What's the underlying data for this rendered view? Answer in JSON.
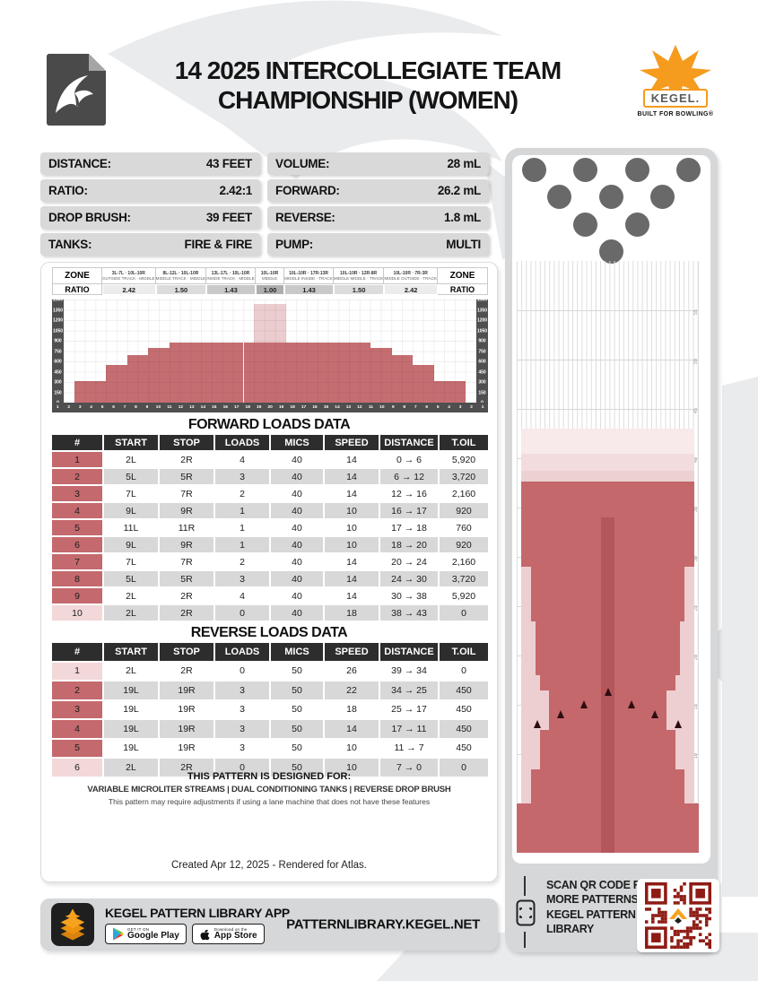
{
  "header": {
    "title_line1": "14 2025 INTERCOLLEGIATE TEAM",
    "title_line2": "CHAMPIONSHIP (WOMEN)",
    "brand": "KEGEL.",
    "brand_tagline": "BUILT FOR BOWLING®"
  },
  "stats": {
    "left": [
      {
        "label": "DISTANCE:",
        "value": "43 FEET"
      },
      {
        "label": "RATIO:",
        "value": "2.42:1"
      },
      {
        "label": "DROP BRUSH:",
        "value": "39 FEET"
      },
      {
        "label": "TANKS:",
        "value": "FIRE & FIRE"
      }
    ],
    "right": [
      {
        "label": "VOLUME:",
        "value": "28 mL"
      },
      {
        "label": "FORWARD:",
        "value": "26.2 mL"
      },
      {
        "label": "REVERSE:",
        "value": "1.8 mL"
      },
      {
        "label": "PUMP:",
        "value": "MULTI"
      }
    ]
  },
  "zone_table": {
    "corner_top": "ZONE",
    "corner_bottom": "RATIO",
    "zones": [
      {
        "line1": "3L-7L · 10L-10R",
        "line2": "OUTSIDE TRACK · MIDDLE",
        "ratio": "2.42",
        "shade": "#ececec"
      },
      {
        "line1": "8L-12L · 10L-10R",
        "line2": "MIDDLE TRACK · MIDDLE",
        "ratio": "1.50",
        "shade": "#dcdcdc"
      },
      {
        "line1": "13L-17L · 10L-10R",
        "line2": "INSIDE TRACK · MIDDLE",
        "ratio": "1.43",
        "shade": "#c9c9c9"
      },
      {
        "line1": "10L-10R",
        "line2": "MIDDLE",
        "ratio": "1.00",
        "shade": "#aeaeae"
      },
      {
        "line1": "10L-10R · 17R-13R",
        "line2": "MIDDLE INSIDE · TRACK",
        "ratio": "1.43",
        "shade": "#c9c9c9"
      },
      {
        "line1": "10L-10R · 12R-8R",
        "line2": "MIDDLE MIDDLE · TRACK",
        "ratio": "1.50",
        "shade": "#dcdcdc"
      },
      {
        "line1": "10L-10R · 7R-3R",
        "line2": "MIDDLE OUTSIDE · TRACK",
        "ratio": "2.42",
        "shade": "#ececec"
      }
    ]
  },
  "chart_data": {
    "type": "bar",
    "title": "Composite oil distribution by board",
    "categories": [
      "1",
      "2",
      "3",
      "4",
      "5",
      "6",
      "7",
      "8",
      "9",
      "10",
      "11",
      "12",
      "13",
      "14",
      "15",
      "16",
      "17",
      "18",
      "19",
      "20",
      "19",
      "18",
      "17",
      "16",
      "15",
      "14",
      "13",
      "12",
      "11",
      "10",
      "9",
      "8",
      "7",
      "6",
      "5",
      "4",
      "3",
      "2",
      "1"
    ],
    "values": [
      0,
      310,
      310,
      310,
      550,
      550,
      690,
      690,
      800,
      800,
      870,
      870,
      870,
      870,
      870,
      870,
      870,
      870,
      870,
      870,
      870,
      870,
      870,
      870,
      870,
      870,
      870,
      870,
      870,
      800,
      800,
      690,
      690,
      550,
      550,
      310,
      310,
      310,
      0
    ],
    "overlay": {
      "start_index": 18,
      "end_index": 20,
      "value": 1430
    },
    "ylim": [
      0,
      1500
    ],
    "yticks": [
      1500,
      1350,
      1200,
      1050,
      900,
      750,
      600,
      450,
      300,
      150,
      0
    ],
    "grid": true,
    "bar_color": "#c56e72",
    "overlay_color": "#eccdcf"
  },
  "forward_loads": {
    "title": "FORWARD LOADS DATA",
    "headers": [
      "#",
      "START",
      "STOP",
      "LOADS",
      "MICS",
      "SPEED",
      "DISTANCE",
      "T.OIL"
    ],
    "rows": [
      [
        "1",
        "2L",
        "2R",
        "4",
        "40",
        "14",
        "0 → 6",
        "5,920"
      ],
      [
        "2",
        "5L",
        "5R",
        "3",
        "40",
        "14",
        "6 → 12",
        "3,720"
      ],
      [
        "3",
        "7L",
        "7R",
        "2",
        "40",
        "14",
        "12 → 16",
        "2,160"
      ],
      [
        "4",
        "9L",
        "9R",
        "1",
        "40",
        "10",
        "16 → 17",
        "920"
      ],
      [
        "5",
        "11L",
        "11R",
        "1",
        "40",
        "10",
        "17 → 18",
        "760"
      ],
      [
        "6",
        "9L",
        "9R",
        "1",
        "40",
        "10",
        "18 → 20",
        "920"
      ],
      [
        "7",
        "7L",
        "7R",
        "2",
        "40",
        "14",
        "20 → 24",
        "2,160"
      ],
      [
        "8",
        "5L",
        "5R",
        "3",
        "40",
        "14",
        "24 → 30",
        "3,720"
      ],
      [
        "9",
        "2L",
        "2R",
        "4",
        "40",
        "14",
        "30 → 38",
        "5,920"
      ],
      [
        "10",
        "2L",
        "2R",
        "0",
        "40",
        "18",
        "38 → 43",
        "0"
      ]
    ],
    "row_marks": [
      "r",
      "r",
      "r",
      "r",
      "r",
      "r",
      "r",
      "r",
      "r",
      "p"
    ]
  },
  "reverse_loads": {
    "title": "REVERSE LOADS DATA",
    "headers": [
      "#",
      "START",
      "STOP",
      "LOADS",
      "MICS",
      "SPEED",
      "DISTANCE",
      "T.OIL"
    ],
    "rows": [
      [
        "1",
        "2L",
        "2R",
        "0",
        "50",
        "26",
        "39 → 34",
        "0"
      ],
      [
        "2",
        "19L",
        "19R",
        "3",
        "50",
        "22",
        "34 → 25",
        "450"
      ],
      [
        "3",
        "19L",
        "19R",
        "3",
        "50",
        "18",
        "25 → 17",
        "450"
      ],
      [
        "4",
        "19L",
        "19R",
        "3",
        "50",
        "14",
        "17 → 11",
        "450"
      ],
      [
        "5",
        "19L",
        "19R",
        "3",
        "50",
        "10",
        "11 → 7",
        "450"
      ],
      [
        "6",
        "2L",
        "2R",
        "0",
        "50",
        "10",
        "7 → 0",
        "0"
      ]
    ],
    "row_marks": [
      "p",
      "r",
      "r",
      "r",
      "r",
      "p"
    ]
  },
  "designed_for": {
    "line1": "THIS PATTERN IS DESIGNED FOR:",
    "line2": "VARIABLE MICROLITER STREAMS | DUAL CONDITIONING TANKS | REVERSE DROP BRUSH",
    "line3": "This pattern may require adjustments if using a lane machine that does not have these features"
  },
  "created_note": "Created Apr 12, 2025 - Rendered for Atlas.",
  "lane": {
    "boards": 39,
    "feet_max": 60,
    "ruler_feet": [
      55,
      50,
      45,
      40,
      35,
      30,
      25,
      20,
      15,
      10,
      5
    ],
    "pins_count": 10,
    "bands": [
      {
        "from_ft": 43,
        "to_ft": 40.5,
        "b1": 2,
        "b2": 38,
        "shade": "light1"
      },
      {
        "from_ft": 40.5,
        "to_ft": 38.7,
        "b1": 2,
        "b2": 38,
        "shade": "light2"
      },
      {
        "from_ft": 38.7,
        "to_ft": 37.6,
        "b1": 2,
        "b2": 38,
        "shade": "light3"
      },
      {
        "from_ft": 29,
        "to_ft": 5,
        "b1": 2,
        "b2": 38,
        "shade": "edge"
      },
      {
        "from_ft": 37.6,
        "to_ft": 29,
        "b1": 2,
        "b2": 38,
        "shade": "solid"
      },
      {
        "from_ft": 29,
        "to_ft": 23.5,
        "b1": 4,
        "b2": 36,
        "shade": "solid"
      },
      {
        "from_ft": 23.5,
        "to_ft": 18,
        "b1": 5,
        "b2": 35,
        "shade": "solid"
      },
      {
        "from_ft": 18,
        "to_ft": 16.5,
        "b1": 6,
        "b2": 34,
        "shade": "solid"
      },
      {
        "from_ft": 16.5,
        "to_ft": 12.5,
        "b1": 8,
        "b2": 32,
        "shade": "solid"
      },
      {
        "from_ft": 12.5,
        "to_ft": 8.5,
        "b1": 6,
        "b2": 34,
        "shade": "solid"
      },
      {
        "from_ft": 8.5,
        "to_ft": 5,
        "b1": 4,
        "b2": 36,
        "shade": "solid"
      },
      {
        "from_ft": 5,
        "to_ft": 0,
        "b1": 1,
        "b2": 39,
        "shade": "solid"
      },
      {
        "from_ft": 34,
        "to_ft": 0,
        "b1": 19,
        "b2": 21,
        "shade": "stripe"
      }
    ],
    "band_colors": {
      "light1": "#f8e9ea",
      "light2": "#f3dcde",
      "light3": "#ecd1d3",
      "edge": "#eecfd1",
      "solid": "#c4686c",
      "stripe": "#b5565b"
    },
    "arrows": [
      {
        "board": 5,
        "ft": 12.6
      },
      {
        "board": 10,
        "ft": 13.6
      },
      {
        "board": 15,
        "ft": 14.6
      },
      {
        "board": 20,
        "ft": 15.9
      },
      {
        "board": 25,
        "ft": 14.6
      },
      {
        "board": 30,
        "ft": 13.6
      },
      {
        "board": 35,
        "ft": 12.6
      }
    ]
  },
  "qr_section": {
    "lines": [
      "SCAN QR CODE FOR",
      "MORE PATTERNS ON",
      "KEGEL PATTERN",
      "LIBRARY"
    ],
    "qr_color": "#8e1b14"
  },
  "bottom": {
    "app_title": "KEGEL PATTERN LIBRARY APP",
    "google_play_top": "GET IT ON",
    "google_play": "Google Play",
    "app_store_top": "Download on the",
    "app_store": "App Store",
    "site": "PATTERNLIBRARY.KEGEL.NET"
  },
  "colors": {
    "accent_red": "#c4686c",
    "light_pink": "#f2d8d9",
    "table_header": "#2d2d2d",
    "row_gray": "#d8d8d8",
    "panel_gray": "#d5d7d9",
    "kegel_orange": "#f59b1e",
    "qr_maroon": "#8e1b14"
  }
}
